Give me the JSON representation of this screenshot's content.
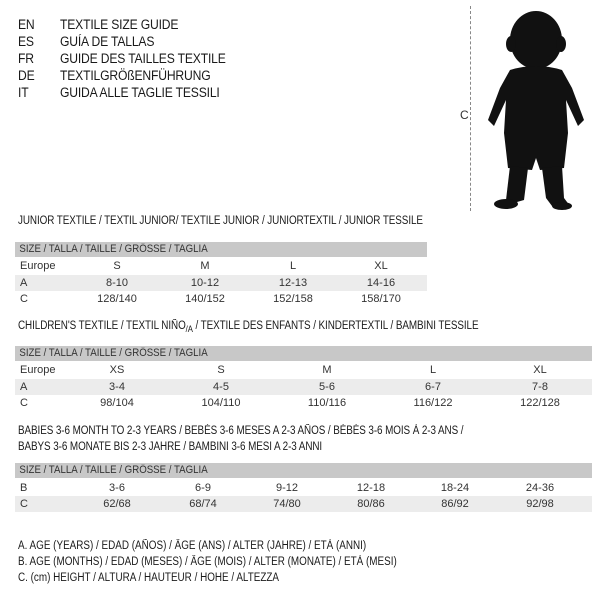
{
  "header": {
    "languages": [
      {
        "code": "EN",
        "label": "TEXTILE SIZE GUIDE"
      },
      {
        "code": "ES",
        "label": "GUÍA DE TALLAS"
      },
      {
        "code": "FR",
        "label": "GUIDE DES TAILLES TEXTILE"
      },
      {
        "code": "DE",
        "label": "TEXTILGRÖßENFÜHRUNG"
      },
      {
        "code": "IT",
        "label": "GUIDA ALLE TAGLIE TESSILI"
      }
    ],
    "figure_label": "C",
    "figure_icon": "child-silhouette-icon"
  },
  "tables": [
    {
      "title": "JUNIOR TEXTILE / TEXTIL JUNIOR/ TEXTILE JUNIOR / JUNIORTEXTIL / JUNIOR TESSILE",
      "header": "SIZE / TALLA / TAILLE / GRÖSSE / TAGLIA",
      "rows": [
        {
          "label": "Europe",
          "values": [
            "S",
            "M",
            "L",
            "XL"
          ]
        },
        {
          "label": "A",
          "values": [
            "8-10",
            "10-12",
            "12-13",
            "14-16"
          ]
        },
        {
          "label": "C",
          "values": [
            "128/140",
            "140/152",
            "152/158",
            "158/170"
          ]
        }
      ]
    },
    {
      "title_main": "CHILDREN'S TEXTILE / TEXTIL NIÑO",
      "title_sub": "/A",
      "title_rest": " / TEXTILE DES ENFANTS / KINDERTEXTIL / BAMBINI TESSILE",
      "header": "SIZE / TALLA / TAILLE / GRÖSSE / TAGLIA",
      "rows": [
        {
          "label": "Europe",
          "values": [
            "XS",
            "S",
            "M",
            "L",
            "XL"
          ]
        },
        {
          "label": "A",
          "values": [
            "3-4",
            "4-5",
            "5-6",
            "6-7",
            "7-8"
          ]
        },
        {
          "label": "C",
          "values": [
            "98/104",
            "104/110",
            "110/116",
            "116/122",
            "122/128"
          ]
        }
      ]
    },
    {
      "title_line1": "BABIES 3-6 MONTH TO 2-3 YEARS / BEBÉS 3-6 MESES A 2-3 AÑOS / BÉBÉS 3-6 MOIS À 2-3 ANS /",
      "title_line2": "BABYS 3-6 MONATE BIS 2-3 JAHRE / BAMBINI 3-6 MESI A 2-3 ANNI",
      "header": "SIZE / TALLA / TAILLE / GRÖSSE / TAGLIA",
      "rows": [
        {
          "label": "B",
          "values": [
            "3-6",
            "6-9",
            "9-12",
            "12-18",
            "18-24",
            "24-36"
          ]
        },
        {
          "label": "C",
          "values": [
            "62/68",
            "68/74",
            "74/80",
            "80/86",
            "86/92",
            "92/98"
          ]
        }
      ]
    }
  ],
  "legend": [
    "A. AGE (YEARS) / EDAD (AÑOS) / ÂGE (ANS) / ALTER (JAHRE) / ETÀ (ANNI)",
    "B. AGE (MONTHS) / EDAD (MESES) / ÂGE (MOIS) / ALTER (MONATE) / ETÀ (MESI)",
    "C. (cm) HEIGHT / ALTURA / HAUTEUR / HÖHE / ALTEZZA"
  ]
}
